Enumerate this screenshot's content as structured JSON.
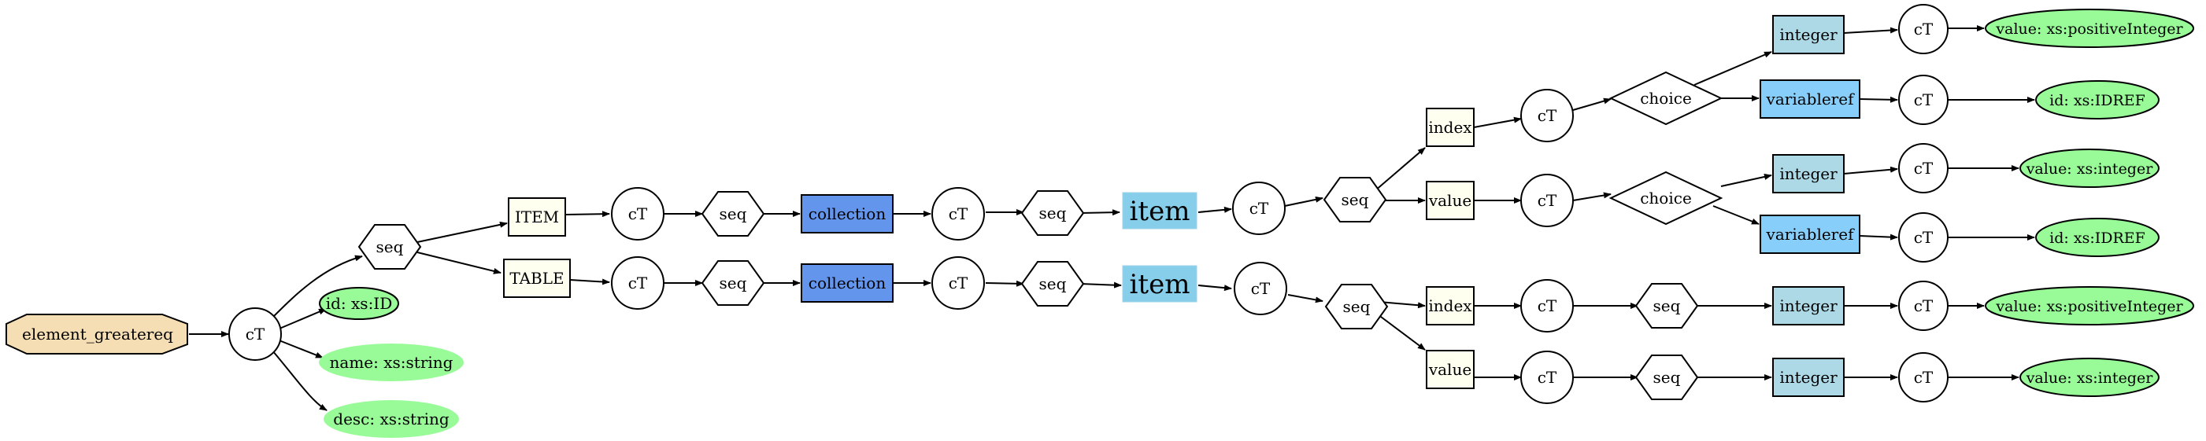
{
  "colors": {
    "root": "#f5deb3",
    "attribute": "#98fb98",
    "element": "#fffff0",
    "collection": "#6495ed",
    "item": "#87ceeb",
    "type": "#add8e6",
    "variableref": "#87cefa",
    "plain": "#ffffff"
  },
  "nodes": {
    "root": "element_greatereq",
    "ct_root": "cT",
    "attr_id": "id: xs:ID",
    "attr_name": "name: xs:string",
    "attr_desc": "desc: xs:string",
    "seq_top": "seq",
    "item_el": "ITEM",
    "table_el": "TABLE",
    "ct_item": "cT",
    "ct_table": "cT",
    "seq_item": "seq",
    "seq_table": "seq",
    "coll_item": "collection",
    "coll_table": "collection",
    "ct_coll_item": "cT",
    "ct_coll_table": "cT",
    "seq_coll_item": "seq",
    "seq_coll_table": "seq",
    "item_a": "item",
    "item_b": "item",
    "ct_item_a": "cT",
    "ct_item_b": "cT",
    "seq_a": "seq",
    "seq_b": "seq",
    "index_a": "index",
    "value_a": "value",
    "index_b": "index",
    "value_b": "value",
    "ct_index_a": "cT",
    "ct_value_a": "cT",
    "ct_index_b": "cT",
    "ct_value_b": "cT",
    "choice_index_a": "choice",
    "choice_value_a": "choice",
    "seq_index_b": "seq",
    "seq_value_b": "seq",
    "integer_1": "integer",
    "varref_1": "variableref",
    "integer_2": "integer",
    "varref_2": "variableref",
    "integer_3": "integer",
    "integer_4": "integer",
    "ct_int_1": "cT",
    "ct_var_1": "cT",
    "ct_int_2": "cT",
    "ct_var_2": "cT",
    "ct_int_3": "cT",
    "ct_int_4": "cT",
    "val_1": "value: xs:positiveInteger",
    "idref_1": "id: xs:IDREF",
    "val_2": "value: xs:integer",
    "idref_2": "id: xs:IDREF",
    "val_3": "value: xs:positiveInteger",
    "val_4": "value: xs:integer"
  }
}
